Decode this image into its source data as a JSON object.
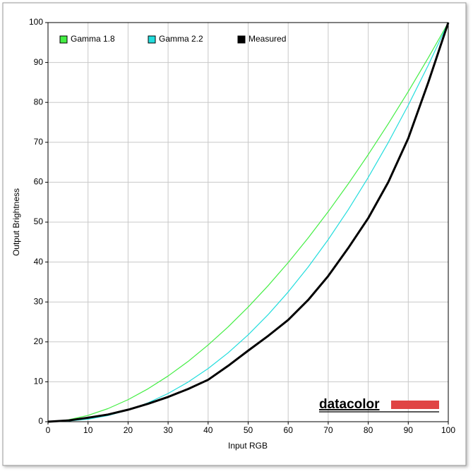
{
  "chart_data": {
    "type": "line",
    "x_label": "Input RGB",
    "y_label": "Output Brightness",
    "logo": "datacolor",
    "x": [
      0,
      5,
      10,
      15,
      20,
      25,
      30,
      35,
      40,
      45,
      50,
      55,
      60,
      65,
      70,
      75,
      80,
      85,
      90,
      95,
      100
    ],
    "series": [
      {
        "name": "Gamma 1.8",
        "color": "#44ee44",
        "width": 1.2,
        "values": [
          0,
          0.46,
          1.58,
          3.29,
          5.52,
          8.25,
          11.45,
          15.1,
          19.22,
          23.76,
          28.72,
          34.09,
          39.87,
          46.05,
          52.62,
          59.58,
          66.92,
          74.64,
          82.72,
          91.18,
          100
        ]
      },
      {
        "name": "Gamma 2.2",
        "color": "#22dddd",
        "width": 1.2,
        "values": [
          0,
          0.14,
          0.63,
          1.54,
          2.9,
          4.74,
          7.07,
          9.93,
          13.32,
          17.26,
          21.76,
          26.84,
          32.5,
          38.76,
          45.63,
          53.1,
          61.2,
          69.94,
          79.31,
          89.33,
          100
        ]
      },
      {
        "name": "Measured",
        "color": "#000000",
        "width": 3,
        "values": [
          0,
          0.3,
          1,
          1.8,
          3,
          4.5,
          6.2,
          8.2,
          10.5,
          14,
          17.8,
          21.5,
          25.5,
          30.5,
          36.5,
          43.5,
          51,
          60,
          71,
          85,
          100
        ]
      }
    ],
    "xlim": [
      0,
      100
    ],
    "ylim": [
      0,
      100
    ],
    "xticks": [
      0,
      10,
      20,
      30,
      40,
      50,
      60,
      70,
      80,
      90,
      100
    ],
    "yticks": [
      0,
      10,
      20,
      30,
      40,
      50,
      60,
      70,
      80,
      90,
      100
    ],
    "grid": true,
    "legend": "top-left"
  }
}
